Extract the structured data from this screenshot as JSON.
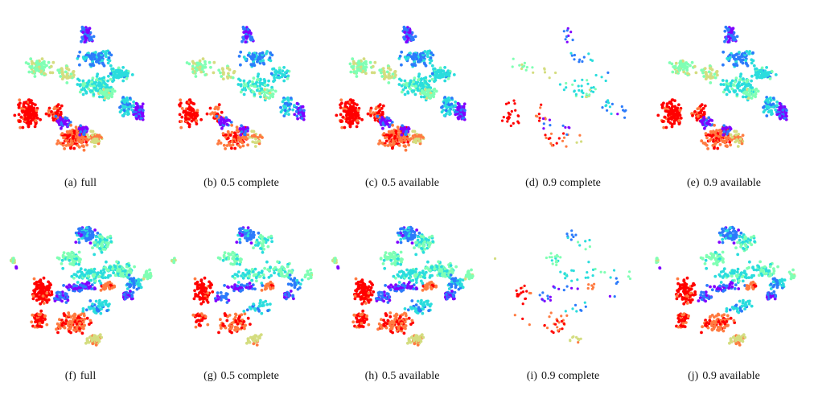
{
  "figure": {
    "colormap": [
      "#8000ff",
      "#2c7bfb",
      "#2adddd",
      "#80ffb4",
      "#d4dd80",
      "#ff7b41",
      "#ff0000"
    ],
    "rows": [
      {
        "shape": "A",
        "panels": [
          {
            "tag": "(a)",
            "label": "full",
            "keep": 1.0
          },
          {
            "tag": "(b)",
            "label": "0.5 complete",
            "keep": 0.62
          },
          {
            "tag": "(c)",
            "label": "0.5 available",
            "keep": 0.88
          },
          {
            "tag": "(d)",
            "label": "0.9 complete",
            "keep": 0.14
          },
          {
            "tag": "(e)",
            "label": "0.9 available",
            "keep": 0.72
          }
        ]
      },
      {
        "shape": "B",
        "panels": [
          {
            "tag": "(f)",
            "label": "full",
            "keep": 1.0
          },
          {
            "tag": "(g)",
            "label": "0.5 complete",
            "keep": 0.6
          },
          {
            "tag": "(h)",
            "label": "0.5 available",
            "keep": 0.9
          },
          {
            "tag": "(i)",
            "label": "0.9 complete",
            "keep": 0.15
          },
          {
            "tag": "(j)",
            "label": "0.9 available",
            "keep": 0.7
          }
        ]
      }
    ]
  }
}
